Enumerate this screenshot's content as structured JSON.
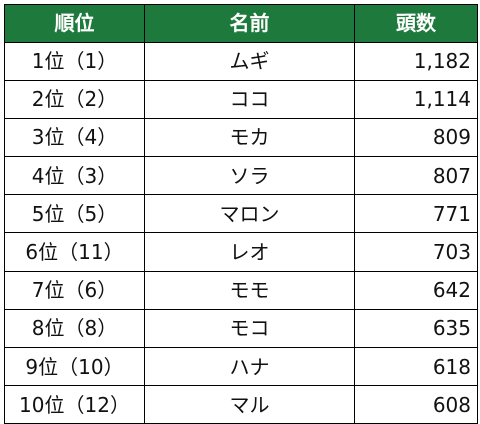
{
  "colors": {
    "header_bg": "#1e7a3c",
    "header_text": "#ffffff",
    "border": "#000000",
    "cell_text": "#111111"
  },
  "table": {
    "headers": [
      "順位",
      "名前",
      "頭数"
    ],
    "rows": [
      {
        "rank": "1位（1）",
        "name": "ムギ",
        "count": "1,182"
      },
      {
        "rank": "2位（2）",
        "name": "ココ",
        "count": "1,114"
      },
      {
        "rank": "3位（4）",
        "name": "モカ",
        "count": "809"
      },
      {
        "rank": "4位（3）",
        "name": "ソラ",
        "count": "807"
      },
      {
        "rank": "5位（5）",
        "name": "マロン",
        "count": "771"
      },
      {
        "rank": "6位（11）",
        "name": "レオ",
        "count": "703"
      },
      {
        "rank": "7位（6）",
        "name": "モモ",
        "count": "642"
      },
      {
        "rank": "8位（8）",
        "name": "モコ",
        "count": "635"
      },
      {
        "rank": "9位（10）",
        "name": "ハナ",
        "count": "618"
      },
      {
        "rank": "10位（12）",
        "name": "マル",
        "count": "608"
      }
    ]
  }
}
